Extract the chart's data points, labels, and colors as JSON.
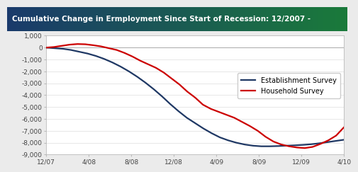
{
  "title": "Cumulative Change in Ermployment Since Start of Recession: 12/2007 -",
  "title_text_color": "#ffffff",
  "bg_color": "#ebebeb",
  "plot_bg_color": "#ffffff",
  "ylim": [
    -9000,
    1000
  ],
  "yticks": [
    1000,
    0,
    -1000,
    -2000,
    -3000,
    -4000,
    -5000,
    -6000,
    -7000,
    -8000,
    -9000
  ],
  "xtick_labels": [
    "12/07",
    "4/08",
    "8/08",
    "12/08",
    "4/09",
    "8/09",
    "12/09",
    "4/10"
  ],
  "establishment_color": "#1f3864",
  "household_color": "#cc0000",
  "establishment_label": "Establishment Survey",
  "household_label": "Household Survey",
  "establishment_data": [
    0,
    -50,
    -100,
    -200,
    -350,
    -500,
    -700,
    -950,
    -1250,
    -1600,
    -2000,
    -2450,
    -2950,
    -3500,
    -4100,
    -4750,
    -5350,
    -5900,
    -6350,
    -6800,
    -7200,
    -7550,
    -7800,
    -8000,
    -8150,
    -8250,
    -8300,
    -8300,
    -8280,
    -8250,
    -8220,
    -8180,
    -8130,
    -8050,
    -7950,
    -7850,
    -7750
  ],
  "household_data": [
    0,
    50,
    150,
    250,
    300,
    280,
    200,
    100,
    -50,
    -200,
    -450,
    -750,
    -1100,
    -1400,
    -1700,
    -2100,
    -2600,
    -3100,
    -3700,
    -4200,
    -4800,
    -5150,
    -5400,
    -5650,
    -5900,
    -6250,
    -6600,
    -7000,
    -7500,
    -7900,
    -8150,
    -8300,
    -8400,
    -8450,
    -8350,
    -8100,
    -7800,
    -7400,
    -6700
  ],
  "n_est": 37,
  "n_hh": 39,
  "title_grad_left": "#1a3a6b",
  "title_grad_right": "#1a7a3a"
}
